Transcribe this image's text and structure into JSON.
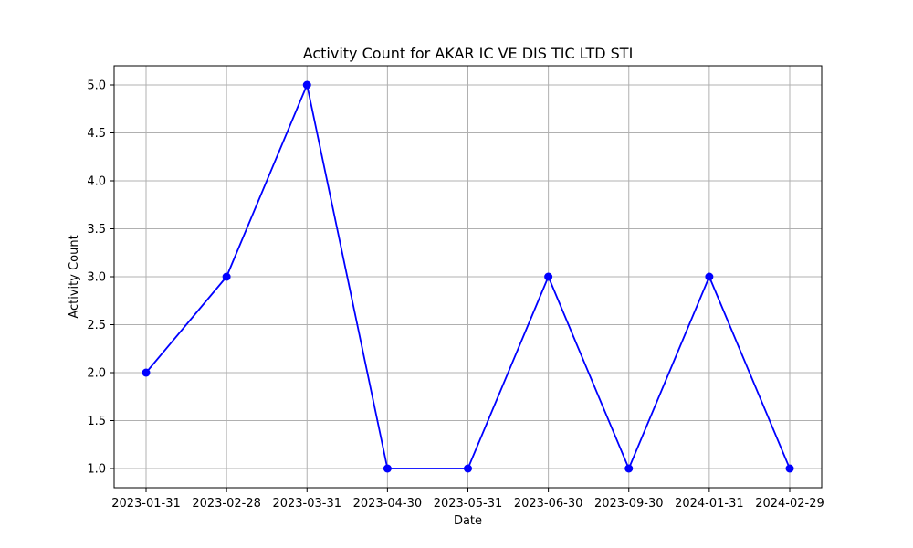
{
  "chart_data": {
    "type": "line",
    "title": "Activity Count for AKAR IC VE DIS TIC LTD STI",
    "xlabel": "Date",
    "ylabel": "Activity Count",
    "categories": [
      "2023-01-31",
      "2023-02-28",
      "2023-03-31",
      "2023-04-30",
      "2023-05-31",
      "2023-06-30",
      "2023-09-30",
      "2024-01-31",
      "2024-02-29"
    ],
    "series": [
      {
        "values": [
          2,
          3,
          5,
          1,
          1,
          3,
          1,
          3,
          1
        ],
        "color": "#0000ff",
        "marker": "circle"
      }
    ],
    "ylim": [
      0.8,
      5.2
    ],
    "yticks": [
      1.0,
      1.5,
      2.0,
      2.5,
      3.0,
      3.5,
      4.0,
      4.5,
      5.0
    ],
    "ytick_labels": [
      "1.0",
      "1.5",
      "2.0",
      "2.5",
      "3.0",
      "3.5",
      "4.0",
      "4.5",
      "5.0"
    ],
    "grid": true,
    "grid_color": "#b0b0b0"
  }
}
